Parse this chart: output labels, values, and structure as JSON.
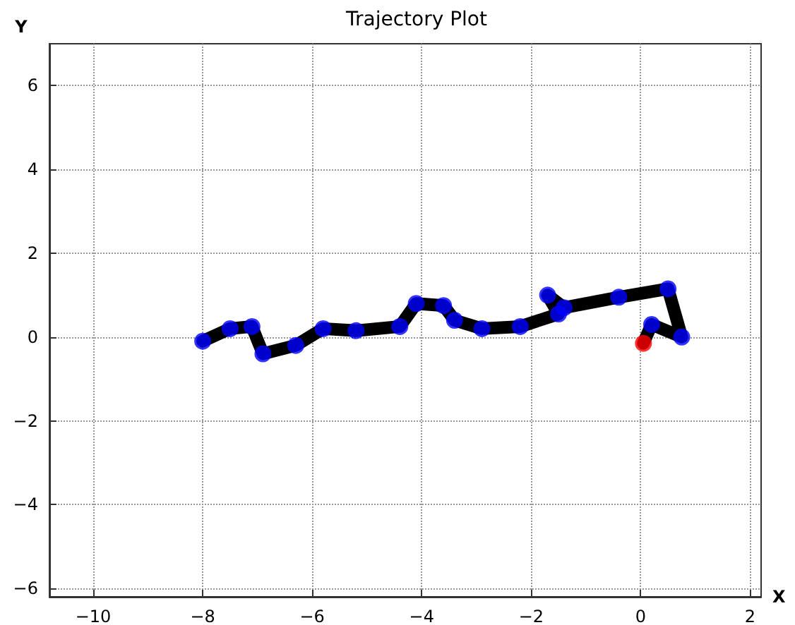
{
  "chart_data": {
    "type": "scatter",
    "title": "Trajectory Plot",
    "xlabel": "X",
    "ylabel": "Y",
    "xlim": [
      -10.8,
      2.2
    ],
    "xticks": [
      -10,
      -8,
      -6,
      -4,
      -2,
      0,
      2
    ],
    "ylim": [
      -6.2,
      7
    ],
    "yticks": [
      -6,
      -4,
      -2,
      0,
      2,
      4,
      6
    ],
    "grid": true,
    "series": [
      {
        "type": "line",
        "color": "#000000",
        "marker": "none",
        "line_style": "solid",
        "x": [
          0.05,
          0.2,
          0.75,
          0.5,
          -0.4,
          -1.4,
          -1.7,
          -1.5,
          -2.2,
          -2.9,
          -3.4,
          -3.6,
          -4.1,
          -4.4,
          -5.2,
          -5.8,
          -6.3,
          -6.9,
          -7.1,
          -7.5,
          -8.0
        ],
        "values": [
          -0.15,
          0.3,
          0.0,
          1.15,
          0.95,
          0.7,
          1.0,
          0.55,
          0.25,
          0.2,
          0.4,
          0.75,
          0.8,
          0.25,
          0.15,
          0.2,
          -0.2,
          -0.4,
          0.25,
          0.2,
          -0.1
        ]
      },
      {
        "type": "scatter",
        "color": "#0000ff",
        "marker": "circle",
        "x": [
          0.2,
          0.75,
          0.5,
          -0.4,
          -1.4,
          -1.7,
          -1.5,
          -2.2,
          -2.9,
          -3.4,
          -3.6,
          -4.1,
          -4.4,
          -5.2,
          -5.8,
          -6.3,
          -6.9,
          -7.1,
          -7.5,
          -8.0
        ],
        "values": [
          0.3,
          0.0,
          1.15,
          0.95,
          0.7,
          1.0,
          0.55,
          0.25,
          0.2,
          0.4,
          0.75,
          0.8,
          0.25,
          0.15,
          0.2,
          -0.2,
          -0.4,
          0.25,
          0.2,
          -0.1
        ]
      },
      {
        "color": "#ff0000",
        "marker": "circle",
        "x": [
          0.05
        ],
        "values": [
          -0.15
        ]
      }
    ]
  }
}
